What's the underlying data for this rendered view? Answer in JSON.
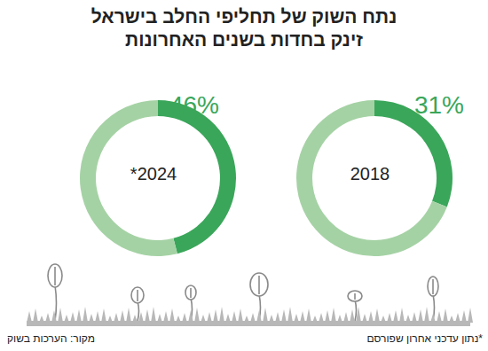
{
  "title": "נתח השוק של תחליפי החלב בישראל\nזינק בחדות בשנים האחרונות",
  "note": "*נתון עדכני אחרון שפורסם",
  "source": "מקור: הערכות בשוק",
  "chart_data": [
    {
      "type": "pie",
      "title": "2018",
      "values": [
        31,
        69
      ],
      "value_labels": [
        "31%",
        null
      ],
      "colors": [
        "#3aa65a",
        "#a5d2a5"
      ]
    },
    {
      "type": "pie",
      "title": "*2024",
      "values": [
        46,
        54
      ],
      "value_labels": [
        "46%",
        null
      ],
      "colors": [
        "#3aa65a",
        "#a5d2a5"
      ]
    }
  ]
}
